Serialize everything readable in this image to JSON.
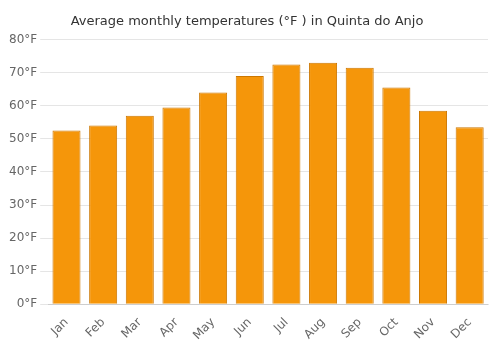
{
  "chart_data": {
    "type": "bar",
    "title": "Average monthly temperatures (°F ) in Quinta do Anjo",
    "categories": [
      "Jan",
      "Feb",
      "Mar",
      "Apr",
      "May",
      "Jun",
      "Jul",
      "Aug",
      "Sep",
      "Oct",
      "Nov",
      "Dec"
    ],
    "values": [
      52.5,
      54.0,
      57.0,
      59.5,
      64.0,
      69.0,
      72.5,
      73.0,
      71.5,
      65.5,
      58.5,
      53.5
    ],
    "color": "#F5960A",
    "ylim": [
      0,
      80
    ],
    "yticks": [
      {
        "value": 0,
        "label": "0°F"
      },
      {
        "value": 10,
        "label": "10°F"
      },
      {
        "value": 20,
        "label": "20°F"
      },
      {
        "value": 30,
        "label": "30°F"
      },
      {
        "value": 40,
        "label": "40°F"
      },
      {
        "value": 50,
        "label": "50°F"
      },
      {
        "value": 60,
        "label": "60°F"
      },
      {
        "value": 70,
        "label": "70°F"
      },
      {
        "value": 80,
        "label": "80°F"
      }
    ],
    "grid": true
  }
}
